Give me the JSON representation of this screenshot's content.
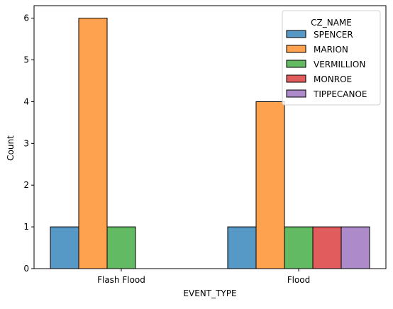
{
  "chart_data": {
    "type": "bar",
    "xlabel": "EVENT_TYPE",
    "ylabel": "Count",
    "categories": [
      "Flash Flood",
      "Flood"
    ],
    "ylim": [
      0,
      6.3
    ],
    "yticks": [
      0,
      1,
      2,
      3,
      4,
      5,
      6
    ],
    "grid": false,
    "legend": {
      "title": "CZ_NAME",
      "placement": "top-right"
    },
    "series": [
      {
        "name": "SPENCER",
        "color": "#5698c6",
        "values": [
          1,
          1
        ]
      },
      {
        "name": "MARION",
        "color": "#ffa24f",
        "values": [
          6,
          4
        ]
      },
      {
        "name": "VERMILLION",
        "color": "#62bb62",
        "values": [
          1,
          1
        ]
      },
      {
        "name": "MONROE",
        "color": "#e05c5d",
        "values": [
          0,
          1
        ]
      },
      {
        "name": "TIPPECANOE",
        "color": "#ad8bcb",
        "values": [
          0,
          1
        ]
      }
    ]
  }
}
